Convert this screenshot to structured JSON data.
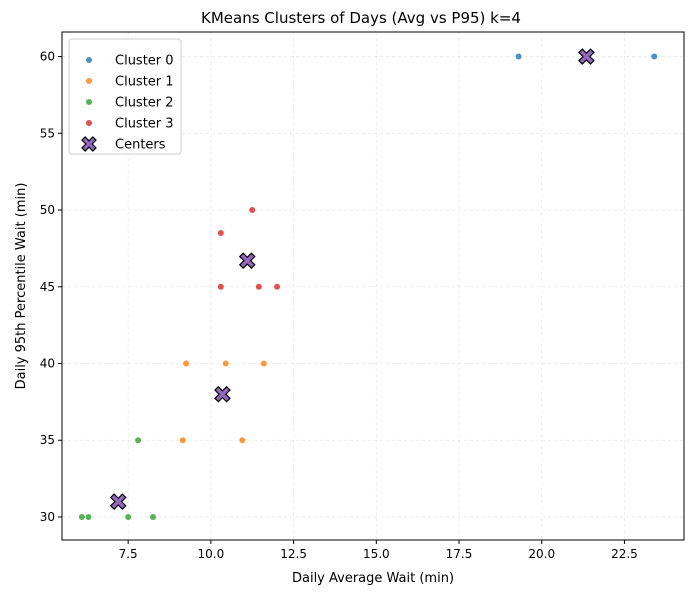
{
  "chart_data": {
    "type": "scatter",
    "title": "KMeans Clusters of Days (Avg vs P95) k=4",
    "xlabel": "Daily Average Wait (min)",
    "ylabel": "Daily 95th Percentile Wait (min)",
    "xlim": [
      5.5,
      24.3
    ],
    "ylim": [
      28.5,
      61.6
    ],
    "xticks": [
      "7.5",
      "10.0",
      "12.5",
      "15.0",
      "17.5",
      "20.0",
      "22.5"
    ],
    "xtick_values": [
      7.5,
      10.0,
      12.5,
      15.0,
      17.5,
      20.0,
      22.5
    ],
    "yticks": [
      "30",
      "35",
      "40",
      "45",
      "50",
      "55",
      "60"
    ],
    "ytick_values": [
      30,
      35,
      40,
      45,
      50,
      55,
      60
    ],
    "grid": true,
    "legend_position": "top-left",
    "series": [
      {
        "name": "Cluster 0",
        "color": "#1f77b4",
        "points": [
          [
            19.3,
            60
          ],
          [
            23.4,
            60
          ]
        ]
      },
      {
        "name": "Cluster 1",
        "color": "#ff7f0e",
        "points": [
          [
            9.25,
            40
          ],
          [
            10.45,
            40
          ],
          [
            11.6,
            40
          ],
          [
            9.15,
            35
          ],
          [
            10.95,
            35
          ]
        ]
      },
      {
        "name": "Cluster 2",
        "color": "#2ca02c",
        "points": [
          [
            7.8,
            35
          ],
          [
            6.1,
            30
          ],
          [
            6.3,
            30
          ],
          [
            7.5,
            30
          ],
          [
            8.25,
            30
          ]
        ]
      },
      {
        "name": "Cluster 3",
        "color": "#d62728",
        "points": [
          [
            11.25,
            50
          ],
          [
            10.3,
            48.5
          ],
          [
            10.3,
            45
          ],
          [
            11.45,
            45
          ],
          [
            12.0,
            45
          ]
        ]
      }
    ],
    "centers": {
      "name": "Centers",
      "color": "#9467bd",
      "marker": "X",
      "points": [
        [
          21.35,
          60
        ],
        [
          11.1,
          46.7
        ],
        [
          10.35,
          38
        ],
        [
          7.2,
          31
        ]
      ]
    }
  }
}
